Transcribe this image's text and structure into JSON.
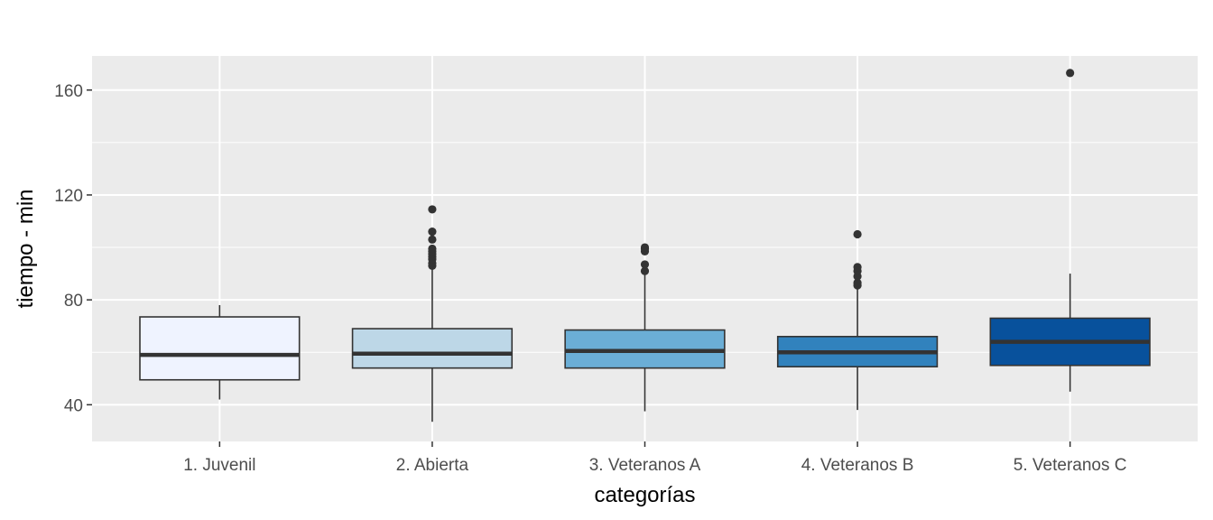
{
  "chart_data": {
    "type": "boxplot",
    "title": "",
    "xlabel": "categorías",
    "ylabel": "tiempo - min",
    "ylim": [
      26,
      173
    ],
    "yticks": [
      40,
      80,
      120,
      160
    ],
    "grid": true,
    "legend": "none",
    "panel_background": "#ebebeb",
    "grid_color": "#ffffff",
    "categories": [
      "1. Juvenil",
      "2. Abierta",
      "3. Veteranos A",
      "4. Veteranos B",
      "5. Veteranos C"
    ],
    "boxes": [
      {
        "category": "1. Juvenil",
        "whisker_low": 42,
        "q1": 49.5,
        "median": 59,
        "q3": 73.5,
        "whisker_high": 78,
        "outliers": [],
        "fill": "#eff3ff"
      },
      {
        "category": "2. Abierta",
        "whisker_low": 33.5,
        "q1": 54,
        "median": 59.5,
        "q3": 69,
        "whisker_high": 92,
        "outliers": [
          93,
          94,
          95.5,
          96.5,
          97.5,
          98.5,
          99.5,
          103,
          106,
          114.5
        ],
        "fill": "#bdd7e7"
      },
      {
        "category": "3. Veteranos A",
        "whisker_low": 37.5,
        "q1": 54,
        "median": 60.5,
        "q3": 68.5,
        "whisker_high": 90,
        "outliers": [
          91,
          93.5,
          98.5,
          99.5,
          100
        ],
        "fill": "#6baed6"
      },
      {
        "category": "4. Veteranos B",
        "whisker_low": 38,
        "q1": 54.5,
        "median": 60,
        "q3": 66,
        "whisker_high": 84,
        "outliers": [
          85.5,
          86.5,
          89,
          91,
          92.5,
          105
        ],
        "fill": "#3182bd"
      },
      {
        "category": "5. Veteranos C",
        "whisker_low": 45,
        "q1": 55,
        "median": 64,
        "q3": 73,
        "whisker_high": 90,
        "outliers": [
          166.5
        ],
        "fill": "#08519c"
      }
    ]
  }
}
